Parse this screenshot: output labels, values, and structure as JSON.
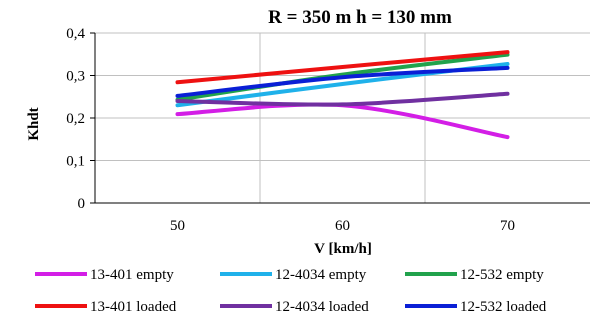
{
  "chart_data": {
    "type": "line",
    "title": "R = 350 m  h = 130 mm",
    "xlabel": "V [km/h]",
    "ylabel": "Khdt",
    "x": [
      50,
      60,
      70
    ],
    "x_tick_labels": [
      "50",
      "60",
      "70"
    ],
    "ylim": [
      0,
      0.4
    ],
    "y_ticks": [
      0,
      0.1,
      0.2,
      0.3,
      0.4
    ],
    "y_tick_labels": [
      "0",
      "0,1",
      "0,2",
      "0,3",
      "0,4"
    ],
    "grid": true,
    "legend_position": "bottom",
    "series": [
      {
        "name": "13-401 empty",
        "color": "#d31ee6",
        "values": [
          0.209,
          0.23,
          0.155
        ]
      },
      {
        "name": "12-4034 empty",
        "color": "#1fb1ea",
        "values": [
          0.23,
          0.28,
          0.327
        ]
      },
      {
        "name": "12-532 empty",
        "color": "#21a24c",
        "values": [
          0.243,
          0.302,
          0.349
        ]
      },
      {
        "name": "13-401 loaded",
        "color": "#ee1111",
        "values": [
          0.284,
          0.32,
          0.355
        ]
      },
      {
        "name": "12-4034 loaded",
        "color": "#7030a0",
        "values": [
          0.24,
          0.232,
          0.257
        ]
      },
      {
        "name": "12-532 loaded",
        "color": "#0a1fd6",
        "values": [
          0.252,
          0.296,
          0.318
        ]
      }
    ]
  }
}
